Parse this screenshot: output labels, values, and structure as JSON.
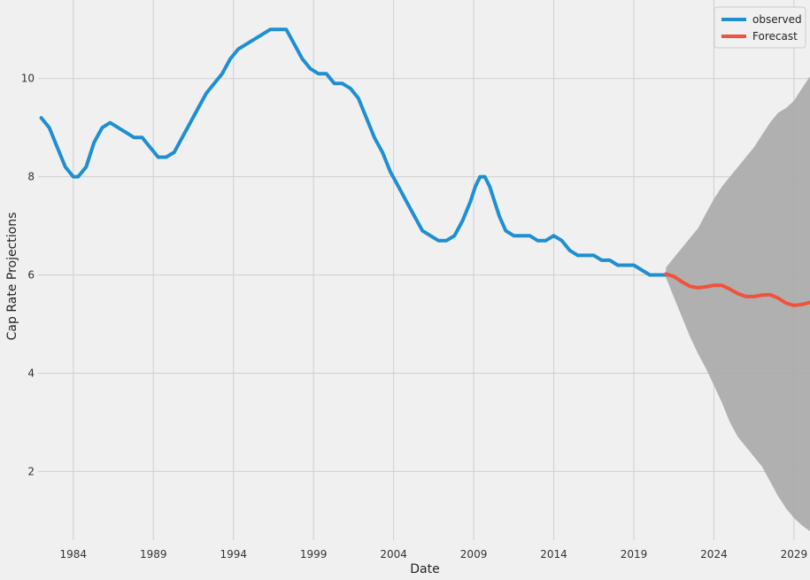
{
  "chart_data": {
    "type": "line",
    "title": "",
    "xlabel": "Date",
    "ylabel": "Cap Rate Projections",
    "xlim": [
      1981.8,
      2030.0
    ],
    "ylim": [
      0.6,
      11.6
    ],
    "x_ticks": [
      1984,
      1989,
      1994,
      1999,
      2004,
      2009,
      2014,
      2019,
      2024,
      2029
    ],
    "x_tick_labels": [
      "1984",
      "1989",
      "1994",
      "1999",
      "2004",
      "2009",
      "2014",
      "2019",
      "2024",
      "2029"
    ],
    "y_ticks": [
      2,
      4,
      6,
      8,
      10
    ],
    "y_tick_labels": [
      "2",
      "4",
      "6",
      "8",
      "10"
    ],
    "grid": true,
    "legend_position": "top-right",
    "colors": {
      "observed": "#1f8fd2",
      "forecast": "#f0533a",
      "ci": "#a8a8a8",
      "background": "#f0f0f0",
      "grid": "#cfcfcf"
    },
    "series": [
      {
        "name": "observed",
        "x": [
          1982.0,
          1982.5,
          1983.0,
          1983.5,
          1984.0,
          1984.3,
          1984.8,
          1985.3,
          1985.8,
          1986.3,
          1986.8,
          1987.3,
          1987.8,
          1988.3,
          1988.8,
          1989.3,
          1989.8,
          1990.3,
          1990.8,
          1991.3,
          1991.8,
          1992.3,
          1992.8,
          1993.3,
          1993.8,
          1994.3,
          1994.8,
          1995.3,
          1995.8,
          1996.3,
          1996.8,
          1997.3,
          1997.8,
          1998.3,
          1998.8,
          1999.3,
          1999.8,
          2000.3,
          2000.8,
          2001.3,
          2001.8,
          2002.3,
          2002.8,
          2003.3,
          2003.8,
          2004.3,
          2004.8,
          2005.3,
          2005.8,
          2006.3,
          2006.8,
          2007.3,
          2007.8,
          2008.3,
          2008.8,
          2009.1,
          2009.4,
          2009.7,
          2010.0,
          2010.3,
          2010.6,
          2011.0,
          2011.5,
          2012.0,
          2012.5,
          2013.0,
          2013.5,
          2014.0,
          2014.5,
          2015.0,
          2015.5,
          2016.0,
          2016.5,
          2017.0,
          2017.5,
          2018.0,
          2018.5,
          2019.0,
          2019.5,
          2020.0,
          2020.5,
          2021.0
        ],
        "values": [
          9.2,
          9.0,
          8.6,
          8.2,
          8.0,
          8.0,
          8.2,
          8.7,
          9.0,
          9.1,
          9.0,
          8.9,
          8.8,
          8.8,
          8.6,
          8.4,
          8.4,
          8.5,
          8.8,
          9.1,
          9.4,
          9.7,
          9.9,
          10.1,
          10.4,
          10.6,
          10.7,
          10.8,
          10.9,
          11.0,
          11.0,
          11.0,
          10.7,
          10.4,
          10.2,
          10.1,
          10.1,
          9.9,
          9.9,
          9.8,
          9.6,
          9.2,
          8.8,
          8.5,
          8.1,
          7.8,
          7.5,
          7.2,
          6.9,
          6.8,
          6.7,
          6.7,
          6.8,
          7.1,
          7.5,
          7.8,
          8.0,
          8.0,
          7.8,
          7.5,
          7.2,
          6.9,
          6.8,
          6.8,
          6.8,
          6.7,
          6.7,
          6.8,
          6.7,
          6.5,
          6.4,
          6.4,
          6.4,
          6.3,
          6.3,
          6.2,
          6.2,
          6.2,
          6.1,
          6.0,
          6.0,
          6.0
        ]
      },
      {
        "name": "Forecast",
        "x": [
          2021.0,
          2021.5,
          2022.0,
          2022.5,
          2023.0,
          2023.5,
          2024.0,
          2024.5,
          2025.0,
          2025.5,
          2026.0,
          2026.5,
          2027.0,
          2027.5,
          2028.0,
          2028.5,
          2029.0,
          2029.5,
          2030.0
        ],
        "values": [
          6.02,
          5.97,
          5.86,
          5.77,
          5.74,
          5.76,
          5.79,
          5.79,
          5.71,
          5.62,
          5.56,
          5.56,
          5.59,
          5.6,
          5.53,
          5.43,
          5.38,
          5.4,
          5.44
        ]
      }
    ],
    "confidence_interval": {
      "x": [
        2021.0,
        2021.5,
        2022.0,
        2022.5,
        2023.0,
        2023.5,
        2024.0,
        2024.5,
        2025.0,
        2025.5,
        2026.0,
        2026.5,
        2027.0,
        2027.5,
        2028.0,
        2028.5,
        2029.0,
        2029.5,
        2030.0
      ],
      "lower": [
        5.95,
        5.55,
        5.15,
        4.75,
        4.4,
        4.1,
        3.75,
        3.4,
        3.0,
        2.7,
        2.5,
        2.3,
        2.1,
        1.8,
        1.5,
        1.25,
        1.05,
        0.9,
        0.78
      ],
      "upper": [
        6.15,
        6.35,
        6.55,
        6.75,
        6.95,
        7.25,
        7.55,
        7.8,
        8.0,
        8.2,
        8.4,
        8.6,
        8.85,
        9.1,
        9.3,
        9.4,
        9.55,
        9.8,
        10.05
      ]
    }
  }
}
